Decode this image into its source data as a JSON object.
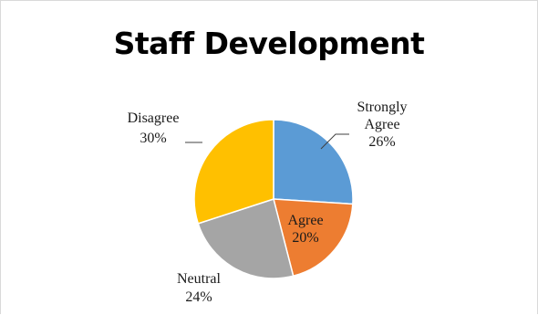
{
  "chart_data": {
    "type": "pie",
    "title": "Staff Development",
    "categories": [
      "Strongly Agree",
      "Agree",
      "Neutral",
      "Disagree"
    ],
    "values": [
      26,
      20,
      24,
      30
    ],
    "value_format": "percent",
    "colors": [
      "#5b9bd5",
      "#ed7d31",
      "#a5a5a5",
      "#ffc000"
    ],
    "start_angle_deg": 0,
    "direction": "clockwise",
    "labels": [
      {
        "lines": [
          "Strongly",
          "Agree",
          "26%"
        ]
      },
      {
        "lines": [
          "Agree",
          "20%"
        ]
      },
      {
        "lines": [
          "Neutral",
          "24%"
        ]
      },
      {
        "lines": [
          "Disagree",
          "30%"
        ]
      }
    ],
    "legend": "none"
  }
}
